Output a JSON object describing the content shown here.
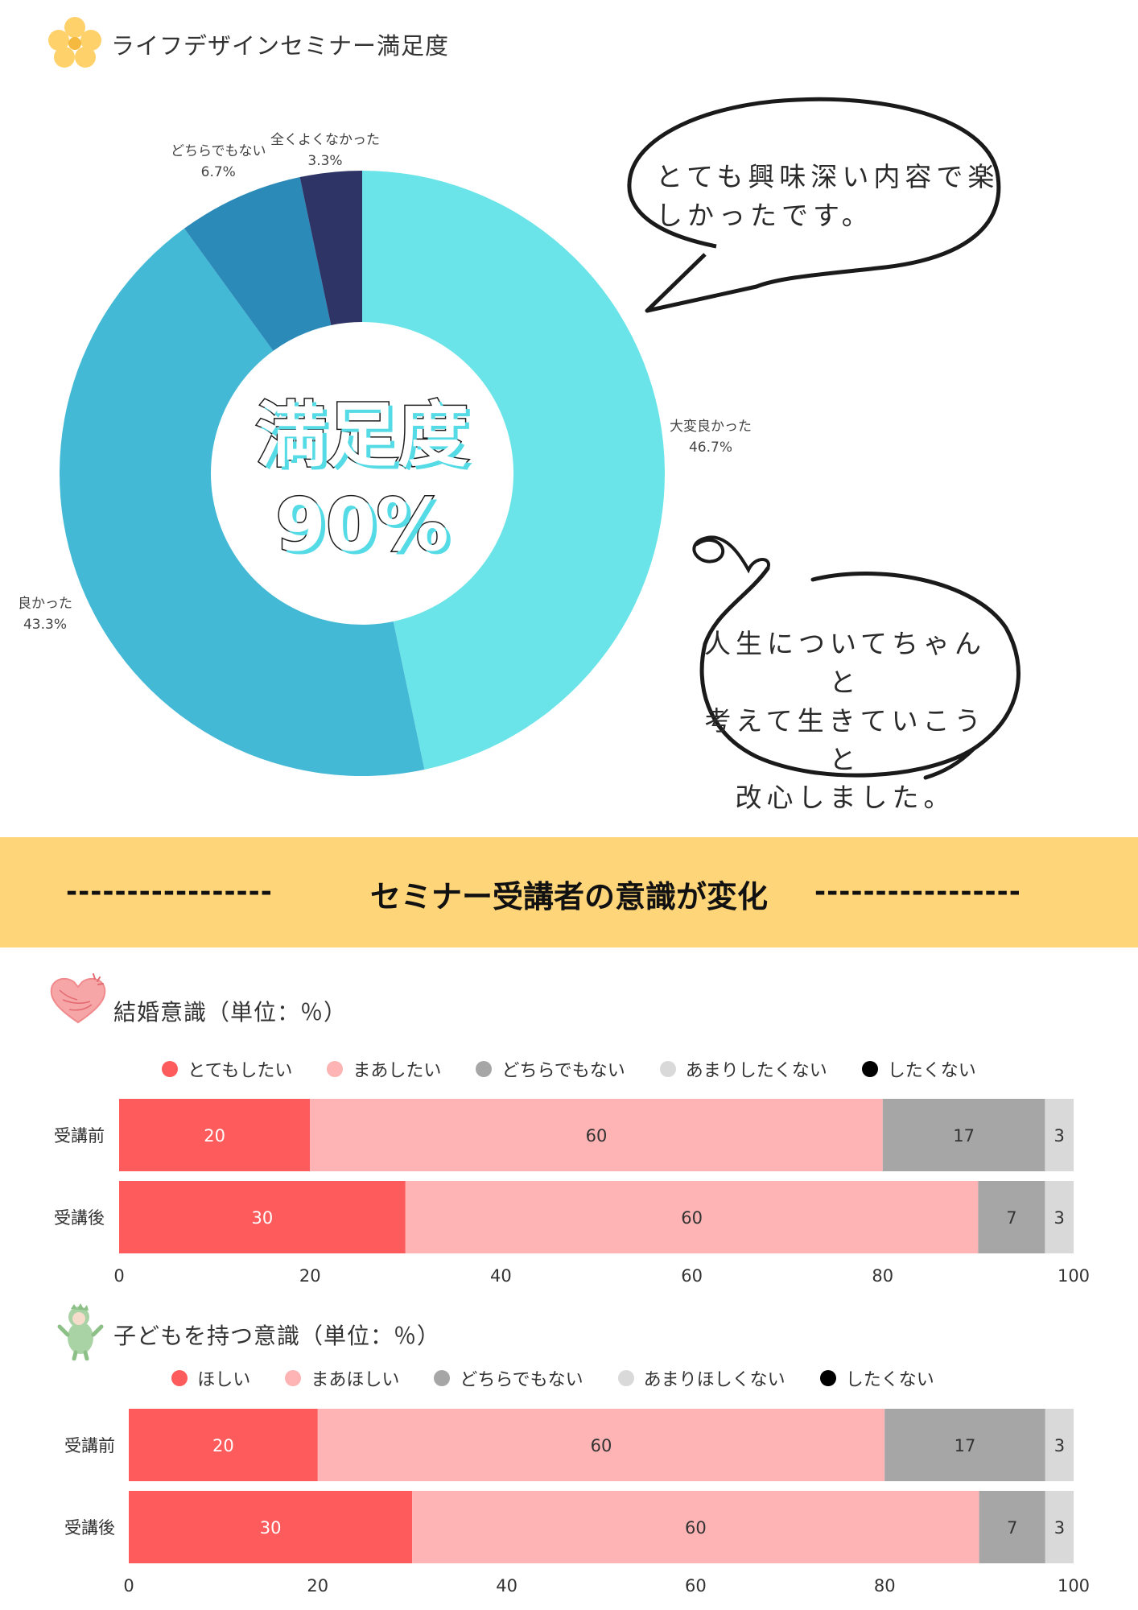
{
  "header": {
    "title": "ライフデザインセミナー満足度"
  },
  "donut": {
    "center_title": "満足度",
    "center_value": "90%",
    "labels": [
      {
        "name": "大変良かった",
        "pct": "46.7%"
      },
      {
        "name": "良かった",
        "pct": "43.3%"
      },
      {
        "name": "どちらでもない",
        "pct": "6.7%"
      },
      {
        "name": "全くよくなかった",
        "pct": "3.3%"
      }
    ]
  },
  "bubbles": {
    "comment1": [
      "とても興味深い内容で楽",
      "しかったです。"
    ],
    "comment2": [
      "人生についてちゃんと",
      "考えて生きていこうと",
      "改心しました。"
    ]
  },
  "banner": {
    "dashes": "-----------------",
    "title": "セミナー受講者の意識が変化"
  },
  "colors": {
    "yellow": "#fed578",
    "donut": [
      "#6ae4e8",
      "#44b9d6",
      "#2b8ab8",
      "#2e3465"
    ],
    "bars": [
      "#fd5b5c",
      "#feb4b4",
      "#a6a6a6",
      "#d9d9d9",
      "#000000"
    ]
  },
  "chart_data": [
    {
      "type": "pie",
      "categories": [
        "大変良かった",
        "良かった",
        "どちらでもない",
        "全くよくなかった"
      ],
      "values": [
        46.7,
        43.3,
        6.7,
        3.3
      ]
    },
    {
      "type": "bar",
      "stacked": true,
      "orientation": "horizontal",
      "title": "結婚意識（単位：％）",
      "categories": [
        "受講前",
        "受講後"
      ],
      "series": [
        {
          "name": "とてもしたい",
          "values": [
            20,
            30
          ]
        },
        {
          "name": "まあしたい",
          "values": [
            60,
            60
          ]
        },
        {
          "name": "どちらでもない",
          "values": [
            17,
            7
          ]
        },
        {
          "name": "あまりしたくない",
          "values": [
            3,
            3
          ]
        },
        {
          "name": "したくない",
          "values": [
            0,
            0
          ]
        }
      ],
      "xlim": [
        0,
        100
      ],
      "xticks": [
        "0",
        "20",
        "40",
        "60",
        "80",
        "100"
      ],
      "legend": "top"
    },
    {
      "type": "bar",
      "stacked": true,
      "orientation": "horizontal",
      "title": "子どもを持つ意識（単位：％）",
      "categories": [
        "受講前",
        "受講後"
      ],
      "series": [
        {
          "name": "ほしい",
          "values": [
            20,
            30
          ]
        },
        {
          "name": "まあほしい",
          "values": [
            60,
            60
          ]
        },
        {
          "name": "どちらでもない",
          "values": [
            17,
            7
          ]
        },
        {
          "name": "あまりほしくない",
          "values": [
            3,
            3
          ]
        },
        {
          "name": "したくない",
          "values": [
            0,
            0
          ]
        }
      ],
      "xlim": [
        0,
        100
      ],
      "xticks": [
        "0",
        "20",
        "40",
        "60",
        "80",
        "100"
      ],
      "legend": "top"
    }
  ]
}
